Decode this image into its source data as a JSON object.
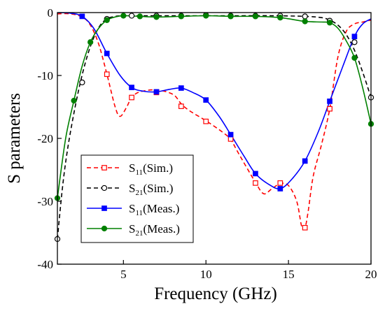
{
  "chart_data": {
    "type": "line",
    "title": "",
    "xlabel": "Frequency (GHz)",
    "ylabel": "S parameters",
    "xlim": [
      1,
      20
    ],
    "ylim": [
      -40,
      0
    ],
    "xticks": [
      5,
      10,
      15,
      20
    ],
    "yticks": [
      0,
      -10,
      -20,
      -30,
      -40
    ],
    "grid": false,
    "legend_position": "bottom-left",
    "series": [
      {
        "name": "S11(Sim.)",
        "label_main": "S",
        "label_sub": "11",
        "label_tail": "(Sim.)",
        "color": "#ff0000",
        "line_style": "dashed",
        "marker": "open-square",
        "curve_x": [
          1,
          1.8,
          2.5,
          3.0,
          3.5,
          4.0,
          4.5,
          4.8,
          5.2,
          5.5,
          6.0,
          7.0,
          8.0,
          8.5,
          9.0,
          10.0,
          11.0,
          11.5,
          12.0,
          13.0,
          13.5,
          14.0,
          14.5,
          15.0,
          15.5,
          15.8,
          16.0,
          16.2,
          16.5,
          17.0,
          17.5,
          18.0,
          18.5,
          19.0,
          19.5,
          20.0
        ],
        "curve_y": [
          -0.2,
          -0.2,
          -0.7,
          -2.0,
          -5.0,
          -9.8,
          -15.0,
          -16.5,
          -15.0,
          -13.5,
          -12.6,
          -12.3,
          -13.0,
          -14.5,
          -15.6,
          -17.2,
          -19.0,
          -20.2,
          -22.5,
          -27.0,
          -28.8,
          -28.0,
          -27.2,
          -27.5,
          -30.0,
          -34.0,
          -34.2,
          -31.5,
          -26.0,
          -21.0,
          -15.3,
          -7.0,
          -3.0,
          -1.8,
          -1.5,
          -1.2
        ],
        "marker_x": [
          4.0,
          5.5,
          7.0,
          8.5,
          10.0,
          11.5,
          13.0,
          14.5,
          16.0,
          17.5
        ],
        "marker_y": [
          -9.8,
          -13.5,
          -12.7,
          -14.9,
          -17.3,
          -20.1,
          -27.1,
          -27.1,
          -34.2,
          -15.3
        ]
      },
      {
        "name": "S21(Sim.)",
        "label_main": "S",
        "label_sub": "21",
        "label_tail": "(Sim.)",
        "color": "#000000",
        "line_style": "dashed",
        "marker": "open-circle",
        "curve_x": [
          1.0,
          1.3,
          1.6,
          2.0,
          2.4,
          2.8,
          3.2,
          3.6,
          4.0,
          4.5,
          5.0,
          6.0,
          8.0,
          10.0,
          12.0,
          14.0,
          16.0,
          17.0,
          17.5,
          18.0,
          18.5,
          19.0,
          19.5,
          20.0
        ],
        "curve_y": [
          -36.0,
          -28.0,
          -22.0,
          -16.0,
          -11.0,
          -7.0,
          -4.0,
          -2.0,
          -1.0,
          -0.6,
          -0.5,
          -0.5,
          -0.5,
          -0.5,
          -0.5,
          -0.5,
          -0.6,
          -0.8,
          -1.2,
          -2.0,
          -3.5,
          -6.0,
          -9.5,
          -13.5
        ],
        "marker_x": [
          1.0,
          2.5,
          4.0,
          5.5,
          7.0,
          8.5,
          10.0,
          11.5,
          13.0,
          14.5,
          16.0,
          17.5,
          19.0,
          20.0
        ],
        "marker_y": [
          -36.0,
          -11.1,
          -1.0,
          -0.5,
          -0.5,
          -0.5,
          -0.4,
          -0.5,
          -0.5,
          -0.5,
          -0.6,
          -1.3,
          -4.7,
          -13.5
        ]
      },
      {
        "name": "S11(Meas.)",
        "label_main": "S",
        "label_sub": "11",
        "label_tail": "(Meas.)",
        "color": "#0000ff",
        "line_style": "solid",
        "marker": "filled-square",
        "curve_x": [
          1.0,
          1.8,
          2.5,
          3.2,
          4.0,
          4.8,
          5.5,
          6.2,
          7.0,
          7.8,
          8.5,
          9.2,
          10.0,
          10.8,
          11.5,
          12.3,
          13.0,
          13.8,
          14.5,
          15.2,
          16.0,
          16.8,
          17.5,
          18.3,
          19.0,
          19.5,
          20.0
        ],
        "curve_y": [
          0.0,
          -0.1,
          -0.6,
          -2.5,
          -6.5,
          -10.0,
          -11.9,
          -12.5,
          -12.6,
          -12.2,
          -12.0,
          -12.7,
          -13.9,
          -16.5,
          -19.4,
          -22.8,
          -25.6,
          -27.3,
          -28.0,
          -26.5,
          -23.6,
          -19.0,
          -14.1,
          -8.5,
          -3.8,
          -1.8,
          -1.0
        ],
        "marker_x": [
          2.5,
          4.0,
          5.5,
          7.0,
          8.5,
          10.0,
          11.5,
          13.0,
          14.5,
          16.0,
          17.5,
          19.0
        ],
        "marker_y": [
          -0.6,
          -6.5,
          -11.9,
          -12.6,
          -12.0,
          -13.9,
          -19.4,
          -25.6,
          -28.0,
          -23.6,
          -14.1,
          -3.8
        ]
      },
      {
        "name": "S21(Meas.)",
        "label_main": "S",
        "label_sub": "21",
        "label_tail": "(Meas.)",
        "color": "#008000",
        "line_style": "solid",
        "marker": "filled-circle",
        "curve_x": [
          1.0,
          1.5,
          2.0,
          2.5,
          3.0,
          3.5,
          4.0,
          4.5,
          5.0,
          6.0,
          7.0,
          8.5,
          10.0,
          11.5,
          13.0,
          14.5,
          16.0,
          17.0,
          17.5,
          18.0,
          18.5,
          19.0,
          19.5,
          20.0
        ],
        "curve_y": [
          -29.5,
          -20.0,
          -14.0,
          -8.5,
          -4.7,
          -2.5,
          -1.2,
          -0.7,
          -0.5,
          -0.6,
          -0.7,
          -0.6,
          -0.5,
          -0.6,
          -0.6,
          -0.8,
          -1.4,
          -1.5,
          -1.6,
          -2.5,
          -4.5,
          -7.2,
          -12.0,
          -17.7
        ],
        "marker_x": [
          1.0,
          2.0,
          3.0,
          4.0,
          5.0,
          6.0,
          7.0,
          8.5,
          10.0,
          11.5,
          13.0,
          14.5,
          16.0,
          17.5,
          19.0,
          20.0
        ],
        "marker_y": [
          -29.5,
          -14.0,
          -4.7,
          -1.2,
          -0.5,
          -0.6,
          -0.7,
          -0.6,
          -0.5,
          -0.6,
          -0.6,
          -0.8,
          -1.4,
          -1.6,
          -7.2,
          -17.7
        ]
      }
    ]
  }
}
